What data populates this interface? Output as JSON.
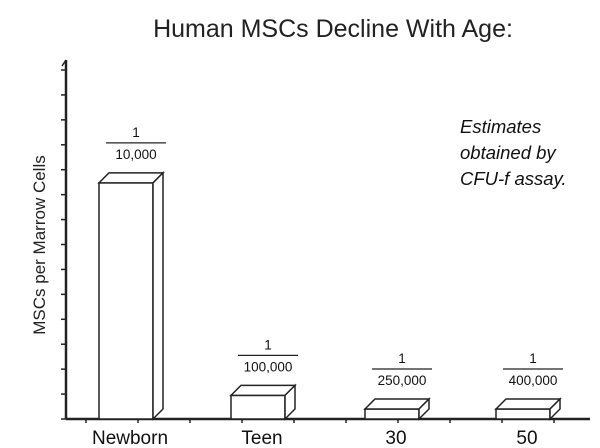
{
  "chart_data": {
    "type": "bar",
    "title": "Human MSCs Decline With Age:",
    "ylabel": "MSCs per Marrow Cells",
    "xlabel": "",
    "categories": [
      "Newborn",
      "Teen",
      "30",
      "50"
    ],
    "values": [
      0.0001,
      1e-05,
      4e-06,
      2.5e-06
    ],
    "data_labels": [
      {
        "numerator": "1",
        "denominator": "10,000"
      },
      {
        "numerator": "1",
        "denominator": "100,000"
      },
      {
        "numerator": "1",
        "denominator": "250,000"
      },
      {
        "numerator": "1",
        "denominator": "400,000"
      }
    ],
    "ylim": [
      0,
      0.00013
    ],
    "style": "3d",
    "annotation": [
      "Estimates",
      "obtained by",
      "CFU-f assay."
    ]
  },
  "colors": {
    "bar_fill": "#ffffff",
    "bar_outline": "#222222",
    "axis": "#222222"
  }
}
